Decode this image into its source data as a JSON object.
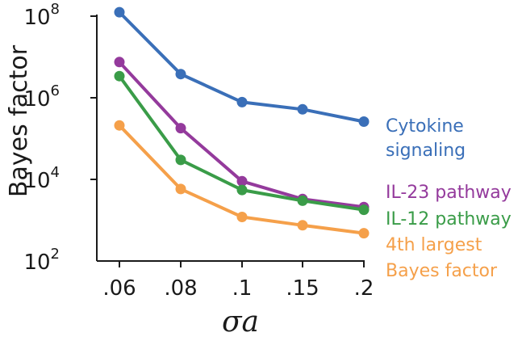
{
  "chart_data": {
    "type": "line",
    "y_scale": "log",
    "grid": false,
    "legend": "direct labels at right end of each line",
    "xlabel": "σa",
    "ylabel": "Bayes factor",
    "categories": [
      ".06",
      ".08",
      ".1",
      ".15",
      ".2"
    ],
    "ylim": [
      100,
      100000000
    ],
    "y_ticks": [
      {
        "value": 100,
        "base": "10",
        "exp": "2"
      },
      {
        "value": 10000,
        "base": "10",
        "exp": "4"
      },
      {
        "value": 1000000,
        "base": "10",
        "exp": "6"
      },
      {
        "value": 100000000,
        "base": "10",
        "exp": "8"
      }
    ],
    "series": [
      {
        "key": "cytokine",
        "label_lines": [
          "Cytokine",
          "signaling"
        ],
        "color": "#3a6fb8",
        "values": [
          125000000,
          3800000,
          780000,
          520000,
          260000
        ]
      },
      {
        "key": "il23",
        "label_lines": [
          "IL-23 pathway"
        ],
        "color": "#943a9c",
        "values": [
          7500000,
          180000,
          9000,
          3300,
          2100
        ]
      },
      {
        "key": "il12",
        "label_lines": [
          "IL-12 pathway"
        ],
        "color": "#3a9c48",
        "values": [
          3400000,
          30000,
          5500,
          3000,
          1800
        ]
      },
      {
        "key": "fourth",
        "label_lines": [
          "4th largest",
          "Bayes factor"
        ],
        "color": "#f5a04a",
        "values": [
          210000,
          5800,
          1200,
          750,
          480
        ]
      }
    ]
  }
}
